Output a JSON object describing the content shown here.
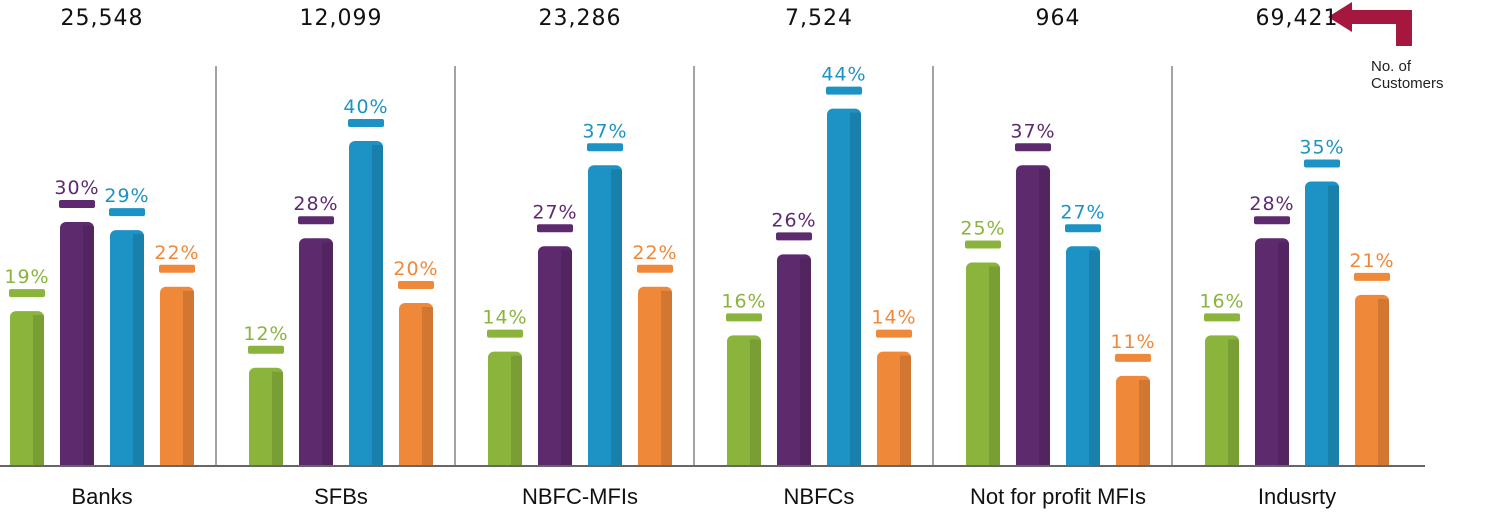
{
  "note": {
    "line1": "No. of",
    "line2": "Customers"
  },
  "colors": {
    "s1": "#8ab43c",
    "s2": "#5e2a6e",
    "s3": "#1d92c4",
    "s4": "#f0883a",
    "arrow": "#a5173f",
    "axis": "#666666"
  },
  "chart_data": {
    "type": "bar",
    "categories": [
      "Banks",
      "SFBs",
      "NBFC-MFIs",
      "NBFCs",
      "Not for profit MFIs",
      "Indusrty"
    ],
    "customers": [
      "25,548",
      "12,099",
      "23,286",
      "7,524",
      "964",
      "69,421"
    ],
    "series": [
      {
        "color": "#8ab43c",
        "values": [
          19,
          12,
          14,
          16,
          25,
          16
        ],
        "labels": [
          "19%",
          "12%",
          "14%",
          "16%",
          "25%",
          "16%"
        ]
      },
      {
        "color": "#5e2a6e",
        "values": [
          30,
          28,
          27,
          26,
          37,
          28
        ],
        "labels": [
          "30%",
          "28%",
          "27%",
          "26%",
          "37%",
          "28%"
        ]
      },
      {
        "color": "#1d92c4",
        "values": [
          29,
          40,
          37,
          44,
          27,
          35
        ],
        "labels": [
          "29%",
          "40%",
          "37%",
          "44%",
          "27%",
          "35%"
        ]
      },
      {
        "color": "#f0883a",
        "values": [
          22,
          20,
          22,
          14,
          11,
          21
        ],
        "labels": [
          "22%",
          "20%",
          "22%",
          "14%",
          "11%",
          "21%"
        ]
      }
    ],
    "value_unit": "%",
    "legend": "none",
    "grid": false
  }
}
